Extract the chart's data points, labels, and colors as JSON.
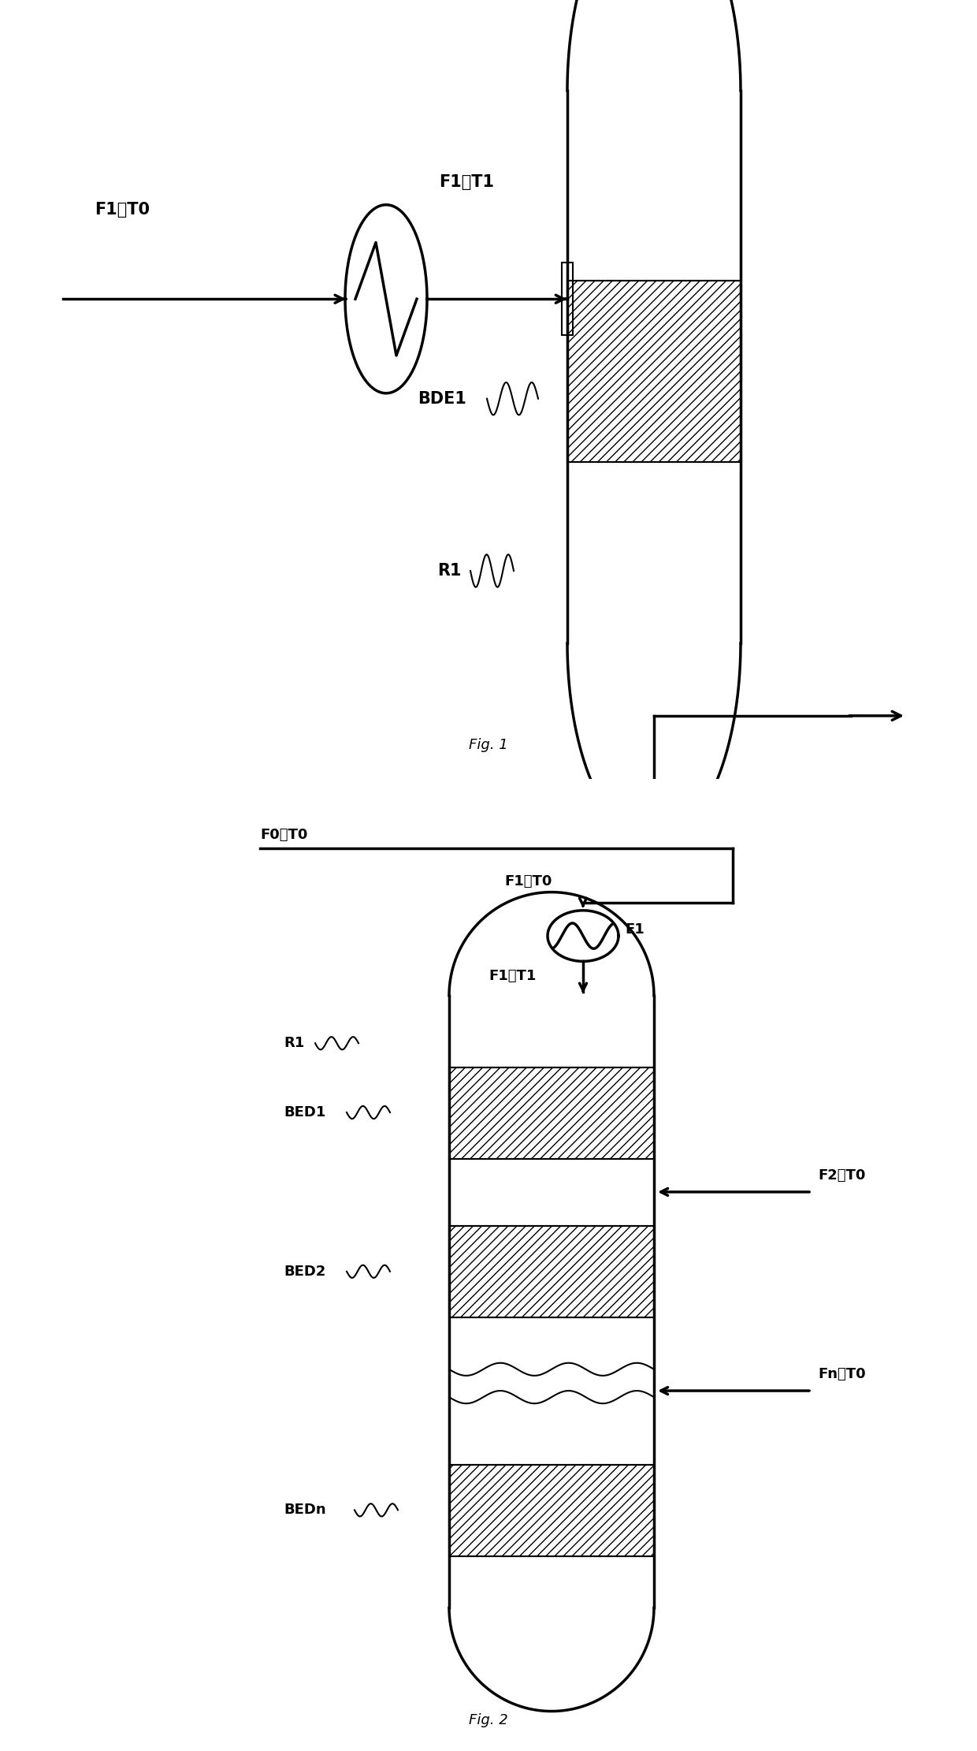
{
  "fig1": {
    "title": "Fig. 1",
    "labels": {
      "input": "F1、T0",
      "after_heater": "F1、T1",
      "bed": "BDE1",
      "reactor": "R1"
    }
  },
  "fig2": {
    "title": "Fig. 2",
    "labels": {
      "f0_t0": "F0、T0",
      "f1_t0": "F1、T0",
      "f1_t1": "F1、T1",
      "r1": "R1",
      "bed1": "BED1",
      "bed2": "BED2",
      "bedn": "BEDn",
      "e1": "E1",
      "f2_t0": "F2、T0",
      "fn_t0": "Fn、T0"
    }
  },
  "line_width": 2.5,
  "line_color": "#000000",
  "hatch_pattern": "///",
  "background_color": "#ffffff",
  "font_size_label": 13,
  "font_size_fig": 13
}
